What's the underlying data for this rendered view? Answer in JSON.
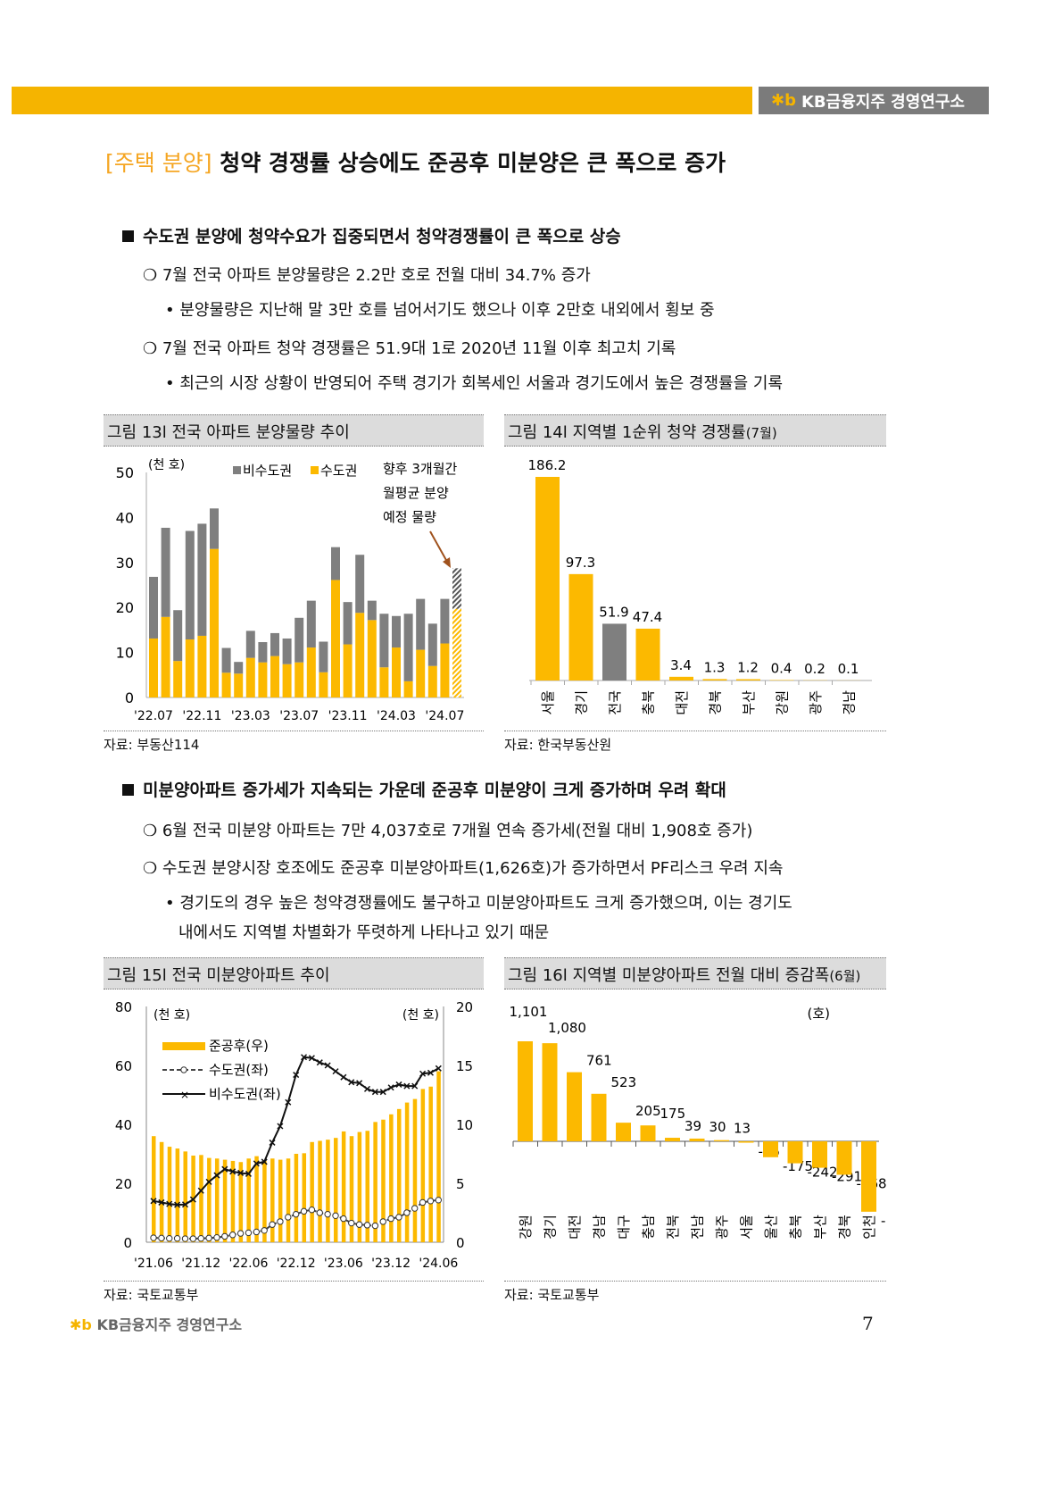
{
  "header": {
    "brand": "KB금융지주 경영연구소"
  },
  "title": {
    "tag": "[주택 분양]",
    "text": "청약 경쟁률 상승에도 준공후 미분양은 큰 폭으로 증가"
  },
  "section1": {
    "heading": "수도권 분양에 청약수요가 집중되면서 청약경쟁률이 큰 폭으로 상승",
    "b1": "7월 전국 아파트 분양물량은 2.2만 호로 전월 대비 34.7% 증가",
    "b1s": "분양물량은 지난해 말 3만 호를 넘어서기도 했으나 이후 2만호 내외에서 횡보 중",
    "b2": "7월 전국 아파트 청약 경쟁률은 51.9대 1로 2020년 11월 이후 최고치 기록",
    "b2s": "최근의 시장 상황이 반영되어 주택 경기가 회복세인 서울과 경기도에서 높은 경쟁률을 기록"
  },
  "section2": {
    "heading": "미분양아파트 증가세가 지속되는 가운데 준공후 미분양이 크게 증가하며 우려 확대",
    "b1": "6월 전국 미분양 아파트는 7만 4,037호로 7개월 연속 증가세(전월 대비 1,908호 증가)",
    "b2": "수도권 분양시장 호조에도 준공후 미분양아파트(1,626호)가 증가하면서 PF리스크 우려 지속",
    "b2s1": "경기도의 경우 높은 청약경쟁률에도 불구하고 미분양아파트도 크게 증가했으며, 이는 경기도",
    "b2s2": "내에서도 지역별 차별화가 뚜렷하게 나타나고 있기 때문"
  },
  "fig13": {
    "title": "그림 13l 전국 아파트 분양물량 추이",
    "source": "자료: 부동산114"
  },
  "fig14": {
    "title": "그림 14l 지역별 1순위 청약 경쟁률",
    "title_suffix": "(7월)",
    "source": "자료: 한국부동산원"
  },
  "fig15": {
    "title": "그림 15l 전국 미분양아파트 추이",
    "source": "자료: 국토교통부"
  },
  "fig16": {
    "title": "그림 16l 지역별 미분양아파트 전월 대비 증감폭",
    "title_suffix": "(6월)",
    "source": "자료: 국토교통부"
  },
  "footer": {
    "brand": "KB금융지주 경영연구소",
    "page": "7"
  },
  "colors": {
    "yellow": "#fcb900",
    "gray": "#7f7f7f",
    "orange": "#f5b400"
  },
  "chart_data": [
    {
      "type": "bar",
      "stacked": true,
      "unit": "(천 호)",
      "ylim": [
        0,
        50
      ],
      "yticks": [
        0,
        10,
        20,
        30,
        40,
        50
      ],
      "xtick_labels": [
        "'22.07",
        "'22.11",
        "'23.03",
        "'23.07",
        "'23.11",
        "'24.03",
        "'24.07"
      ],
      "categories": [
        "22.07",
        "22.08",
        "22.09",
        "22.10",
        "22.11",
        "22.12",
        "23.01",
        "23.02",
        "23.03",
        "23.04",
        "23.05",
        "23.06",
        "23.07",
        "23.08",
        "23.09",
        "23.10",
        "23.11",
        "23.12",
        "24.01",
        "24.02",
        "24.03",
        "24.04",
        "24.05",
        "24.06",
        "24.07",
        "향후3개월"
      ],
      "series": [
        {
          "name": "수도권",
          "values": [
            13.1,
            17.9,
            8.1,
            12.9,
            13.7,
            33.0,
            5.5,
            5.3,
            8.8,
            7.8,
            9.2,
            7.4,
            7.8,
            11.1,
            5.6,
            26.1,
            11.8,
            18.8,
            17.2,
            6.7,
            11.1,
            3.6,
            10.6,
            7.0,
            12.0,
            19.7
          ]
        },
        {
          "name": "비수도권",
          "values": [
            13.7,
            19.8,
            11.3,
            24.1,
            24.9,
            9.0,
            5.5,
            2.6,
            6.0,
            4.5,
            5.1,
            5.7,
            9.9,
            10.4,
            6.8,
            7.3,
            9.4,
            12.9,
            4.3,
            11.9,
            7.0,
            15.0,
            11.3,
            9.4,
            9.9,
            9.0
          ]
        }
      ],
      "annotation": [
        "향후 3개월간",
        "월평균 분양",
        "예정 물량"
      ]
    },
    {
      "type": "bar",
      "categories": [
        "서울",
        "경기",
        "전국",
        "충북",
        "대전",
        "경북",
        "부산",
        "강원",
        "광주",
        "경남"
      ],
      "values": [
        186.2,
        97.3,
        51.9,
        47.4,
        3.4,
        1.3,
        1.2,
        0.4,
        0.2,
        0.1
      ],
      "labels": [
        "186.2",
        "97.3",
        "51.9",
        "47.4",
        "3.4",
        "1.3",
        "1.2",
        "0.4",
        "0.2",
        "0.1"
      ]
    },
    {
      "type": "bar+line",
      "unit_left": "(천 호)",
      "unit_right": "(천 호)",
      "ylim_left": [
        0,
        80
      ],
      "ylim_right": [
        0,
        20
      ],
      "yticks_left": [
        0,
        20,
        40,
        60,
        80
      ],
      "yticks_right": [
        0,
        5,
        10,
        15,
        20
      ],
      "xtick_labels": [
        "'21.06",
        "'21.12",
        "'22.06",
        "'22.12",
        "'23.06",
        "'23.12",
        "'24.06"
      ],
      "series": [
        {
          "name": "준공후(우)",
          "type": "bar",
          "values": [
            9.0,
            8.5,
            8.1,
            7.95,
            7.7,
            7.35,
            7.4,
            7.15,
            7.1,
            7.0,
            6.9,
            6.8,
            7.1,
            7.3,
            6.9,
            7.1,
            7.0,
            7.1,
            7.5,
            7.55,
            8.5,
            8.6,
            8.7,
            8.85,
            9.4,
            9.0,
            9.35,
            9.45,
            10.2,
            10.4,
            10.85,
            11.3,
            11.85,
            12.15,
            13.0,
            13.2,
            14.5
          ]
        },
        {
          "name": "수도권(좌)",
          "type": "line",
          "values": [
            1.5,
            1.4,
            1.3,
            1.3,
            1.2,
            1.2,
            1.3,
            1.4,
            1.6,
            2.0,
            2.5,
            3.0,
            3.2,
            3.5,
            4.0,
            6.0,
            7.0,
            8.5,
            9.5,
            10.5,
            11.0,
            10.0,
            9.5,
            9.0,
            8.0,
            6.5,
            6.0,
            5.8,
            5.6,
            7.0,
            8.0,
            8.5,
            10.0,
            11.5,
            13.5,
            14.0,
            14.3
          ]
        },
        {
          "name": "비수도권(좌)",
          "type": "line",
          "values": [
            14,
            13.5,
            13,
            12.7,
            12.8,
            14.5,
            17.5,
            20.5,
            22.7,
            24.8,
            24,
            23.5,
            23.2,
            26.7,
            27.3,
            33.8,
            39.4,
            47.5,
            56.8,
            62.8,
            62.5,
            61,
            60,
            58,
            56,
            54.3,
            54,
            52,
            51,
            51,
            52.5,
            53.5,
            53,
            53,
            57.2,
            57.5,
            59
          ]
        }
      ]
    },
    {
      "type": "bar",
      "unit": "(호)",
      "categories": [
        "강원",
        "경기",
        "대전",
        "경남",
        "대구",
        "충남",
        "전북",
        "전남",
        "광주",
        "서울",
        "울산",
        "충북",
        "부산",
        "경북",
        "인천"
      ],
      "values": [
        1101,
        1080,
        761,
        523,
        205,
        175,
        39,
        30,
        13,
        -15,
        -175,
        -242,
        -291,
        -368,
        -775
      ],
      "labels": [
        "1,101",
        "1,080",
        "761",
        "523",
        "205",
        "175",
        "39",
        "30",
        "13",
        "-15",
        "-175",
        "-242",
        "-291",
        "-368",
        "-775"
      ]
    }
  ]
}
